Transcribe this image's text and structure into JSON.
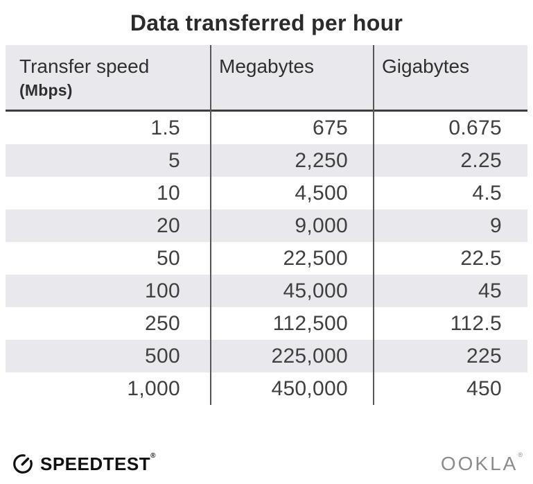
{
  "title": "Data transferred per hour",
  "table": {
    "headers": {
      "speed_title": "Transfer speed",
      "speed_unit": "(Mbps)",
      "megabytes": "Megabytes",
      "gigabytes": "Gigabytes"
    },
    "rows": [
      [
        "1.5",
        "675",
        "0.675"
      ],
      [
        "5",
        "2,250",
        "2.25"
      ],
      [
        "10",
        "4,500",
        "4.5"
      ],
      [
        "20",
        "9,000",
        "9"
      ],
      [
        "50",
        "22,500",
        "22.5"
      ],
      [
        "100",
        "45,000",
        "45"
      ],
      [
        "250",
        "112,500",
        "112.5"
      ],
      [
        "500",
        "225,000",
        "225"
      ],
      [
        "1,000",
        "450,000",
        "450"
      ]
    ]
  },
  "chart_data": {
    "type": "table",
    "title": "Data transferred per hour",
    "columns": [
      "Transfer speed (Mbps)",
      "Megabytes",
      "Gigabytes"
    ],
    "rows": [
      [
        1.5,
        675,
        0.675
      ],
      [
        5,
        2250,
        2.25
      ],
      [
        10,
        4500,
        4.5
      ],
      [
        20,
        9000,
        9
      ],
      [
        50,
        22500,
        22.5
      ],
      [
        100,
        45000,
        45
      ],
      [
        250,
        112500,
        112.5
      ],
      [
        500,
        225000,
        225
      ],
      [
        1000,
        450000,
        450
      ]
    ],
    "layout": {
      "striped_rows": true,
      "stripe_start": "row2",
      "column_dividers": true
    }
  },
  "footer": {
    "speedtest_label": "SPEEDTEST",
    "speedtest_mark": "®",
    "ookla_label": "OOKLA",
    "ookla_mark": "®"
  },
  "colors": {
    "header_bg": "#e9e8ec",
    "stripe": "#e9e8ec",
    "divider": "#565656",
    "header_rule": "#3d3d3d",
    "title_text": "#2b2b2b",
    "cell_text": "#404040",
    "ookla_gray": "#8c8c8c"
  }
}
